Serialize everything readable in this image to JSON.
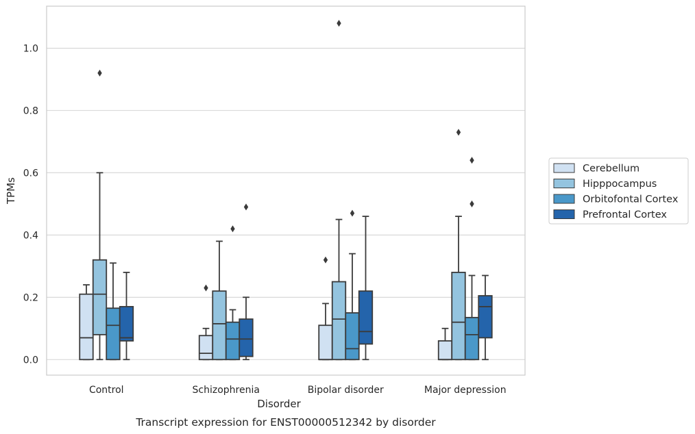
{
  "caption": "Transcript expression for ENST00000512342 by disorder",
  "chart_data": {
    "type": "box",
    "xlabel": "Disorder",
    "ylabel": "TPMs",
    "ylim": [
      -0.05,
      1.135
    ],
    "yticks": [
      "0.0",
      "0.2",
      "0.4",
      "0.6",
      "0.8",
      "1.0"
    ],
    "grid": "horizontal",
    "legend_position": "right",
    "categories": [
      "Control",
      "Schizophrenia",
      "Bipolar disorder",
      "Major depression"
    ],
    "series": [
      {
        "name": "Cerebellum",
        "color": "#d0e1f2",
        "boxes": [
          {
            "whisker_low": 0.0,
            "q1": 0.0,
            "median": 0.07,
            "q3": 0.21,
            "whisker_high": 0.24,
            "outliers": []
          },
          {
            "whisker_low": 0.0,
            "q1": 0.0,
            "median": 0.02,
            "q3": 0.077,
            "whisker_high": 0.1,
            "outliers": [
              0.23
            ]
          },
          {
            "whisker_low": 0.0,
            "q1": 0.0,
            "median": 0.0,
            "q3": 0.11,
            "whisker_high": 0.18,
            "outliers": [
              0.32
            ]
          },
          {
            "whisker_low": 0.0,
            "q1": 0.0,
            "median": 0.0,
            "q3": 0.06,
            "whisker_high": 0.1,
            "outliers": []
          }
        ]
      },
      {
        "name": "Hipppocampus",
        "color": "#94c4df",
        "boxes": [
          {
            "whisker_low": 0.0,
            "q1": 0.08,
            "median": 0.21,
            "q3": 0.32,
            "whisker_high": 0.6,
            "outliers": [
              0.92
            ]
          },
          {
            "whisker_low": 0.0,
            "q1": 0.0,
            "median": 0.115,
            "q3": 0.22,
            "whisker_high": 0.38,
            "outliers": []
          },
          {
            "whisker_low": 0.0,
            "q1": 0.0,
            "median": 0.13,
            "q3": 0.25,
            "whisker_high": 0.45,
            "outliers": [
              1.08
            ]
          },
          {
            "whisker_low": 0.0,
            "q1": 0.0,
            "median": 0.12,
            "q3": 0.28,
            "whisker_high": 0.46,
            "outliers": [
              0.73
            ]
          }
        ]
      },
      {
        "name": "Orbitofontal Cortex",
        "color": "#4a98c9",
        "boxes": [
          {
            "whisker_low": 0.0,
            "q1": 0.0,
            "median": 0.11,
            "q3": 0.165,
            "whisker_high": 0.31,
            "outliers": []
          },
          {
            "whisker_low": 0.0,
            "q1": 0.0,
            "median": 0.066,
            "q3": 0.12,
            "whisker_high": 0.16,
            "outliers": [
              0.42
            ]
          },
          {
            "whisker_low": 0.0,
            "q1": 0.0,
            "median": 0.035,
            "q3": 0.15,
            "whisker_high": 0.34,
            "outliers": [
              0.47
            ]
          },
          {
            "whisker_low": 0.0,
            "q1": 0.0,
            "median": 0.08,
            "q3": 0.135,
            "whisker_high": 0.27,
            "outliers": [
              0.5,
              0.64
            ]
          }
        ]
      },
      {
        "name": "Prefrontal Cortex",
        "color": "#2464ab",
        "boxes": [
          {
            "whisker_low": 0.0,
            "q1": 0.06,
            "median": 0.07,
            "q3": 0.17,
            "whisker_high": 0.28,
            "outliers": []
          },
          {
            "whisker_low": 0.0,
            "q1": 0.01,
            "median": 0.066,
            "q3": 0.13,
            "whisker_high": 0.2,
            "outliers": [
              0.49
            ]
          },
          {
            "whisker_low": 0.0,
            "q1": 0.05,
            "median": 0.09,
            "q3": 0.22,
            "whisker_high": 0.46,
            "outliers": []
          },
          {
            "whisker_low": 0.0,
            "q1": 0.07,
            "median": 0.17,
            "q3": 0.205,
            "whisker_high": 0.27,
            "outliers": []
          }
        ]
      }
    ]
  }
}
